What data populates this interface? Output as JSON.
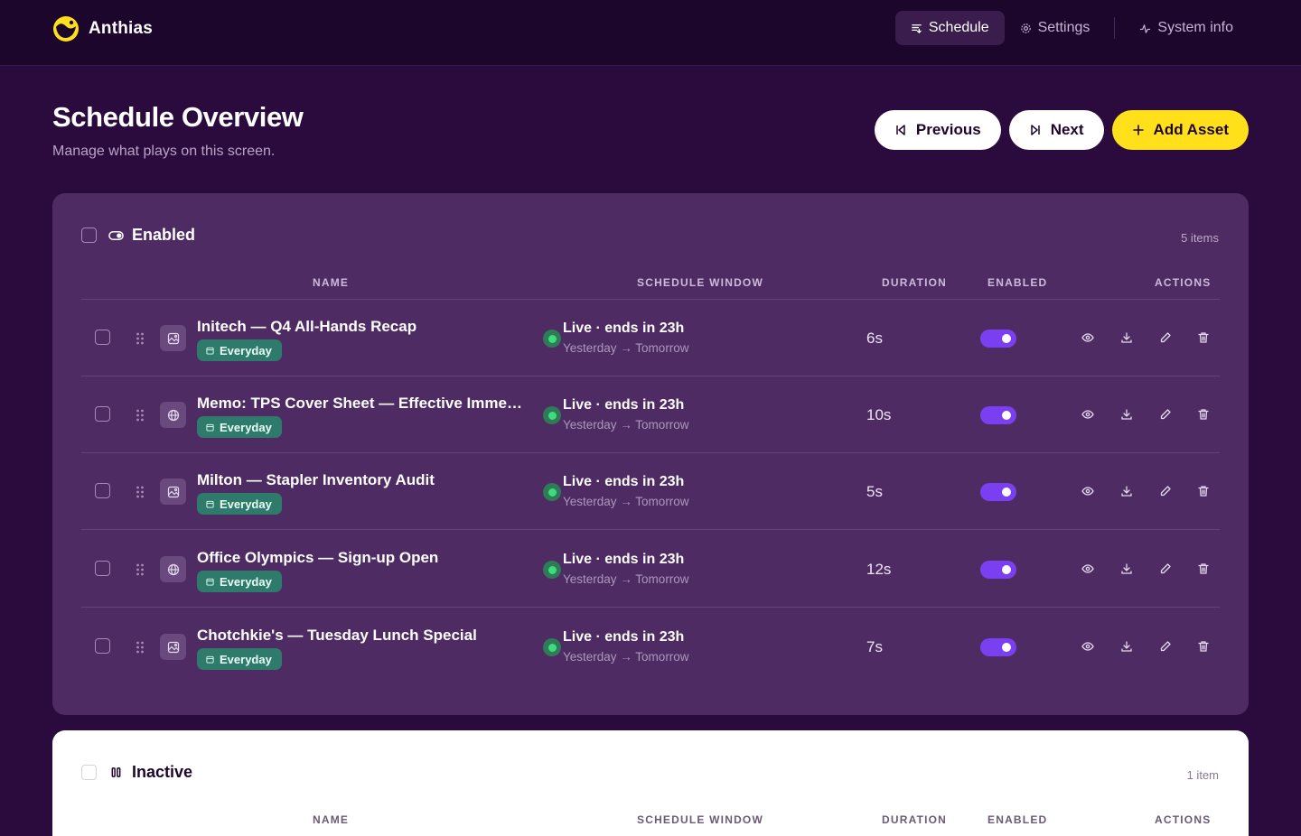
{
  "app": {
    "name": "Anthias"
  },
  "nav": {
    "schedule": "Schedule",
    "settings": "Settings",
    "system_info": "System info"
  },
  "page": {
    "title": "Schedule Overview",
    "subtitle": "Manage what plays on this screen."
  },
  "actions": {
    "previous": "Previous",
    "next": "Next",
    "add_asset": "Add Asset"
  },
  "columns": {
    "name": "NAME",
    "window": "SCHEDULE WINDOW",
    "duration": "DURATION",
    "enabled": "ENABLED",
    "actions": "ACTIONS"
  },
  "enabled_section": {
    "title": "Enabled",
    "count": "5 items",
    "rows": [
      {
        "name": "Initech — Q4 All-Hands Recap",
        "type": "image-icon",
        "tag": "Everyday",
        "status": "Live · ends in 23h",
        "window": "Yesterday → Tomorrow",
        "duration": "6s",
        "enabled": true
      },
      {
        "name": "Memo: TPS Cover Sheet — Effective Immed…",
        "type": "globe-icon",
        "tag": "Everyday",
        "status": "Live · ends in 23h",
        "window": "Yesterday → Tomorrow",
        "duration": "10s",
        "enabled": true
      },
      {
        "name": "Milton — Stapler Inventory Audit",
        "type": "image-icon",
        "tag": "Everyday",
        "status": "Live · ends in 23h",
        "window": "Yesterday → Tomorrow",
        "duration": "5s",
        "enabled": true
      },
      {
        "name": "Office Olympics — Sign-up Open",
        "type": "globe-icon",
        "tag": "Everyday",
        "status": "Live · ends in 23h",
        "window": "Yesterday → Tomorrow",
        "duration": "12s",
        "enabled": true
      },
      {
        "name": "Chotchkie's — Tuesday Lunch Special",
        "type": "image-icon",
        "tag": "Everyday",
        "status": "Live · ends in 23h",
        "window": "Yesterday → Tomorrow",
        "duration": "7s",
        "enabled": true
      }
    ]
  },
  "inactive_section": {
    "title": "Inactive",
    "count": "1 item"
  },
  "colors": {
    "background": "#2b0a3d",
    "panel": "#4e2b63",
    "accent_yellow": "#ffe01b",
    "toggle_on": "#7a3ff0",
    "live_green": "#3ddc7e",
    "tag_teal": "#2f7b6b"
  }
}
